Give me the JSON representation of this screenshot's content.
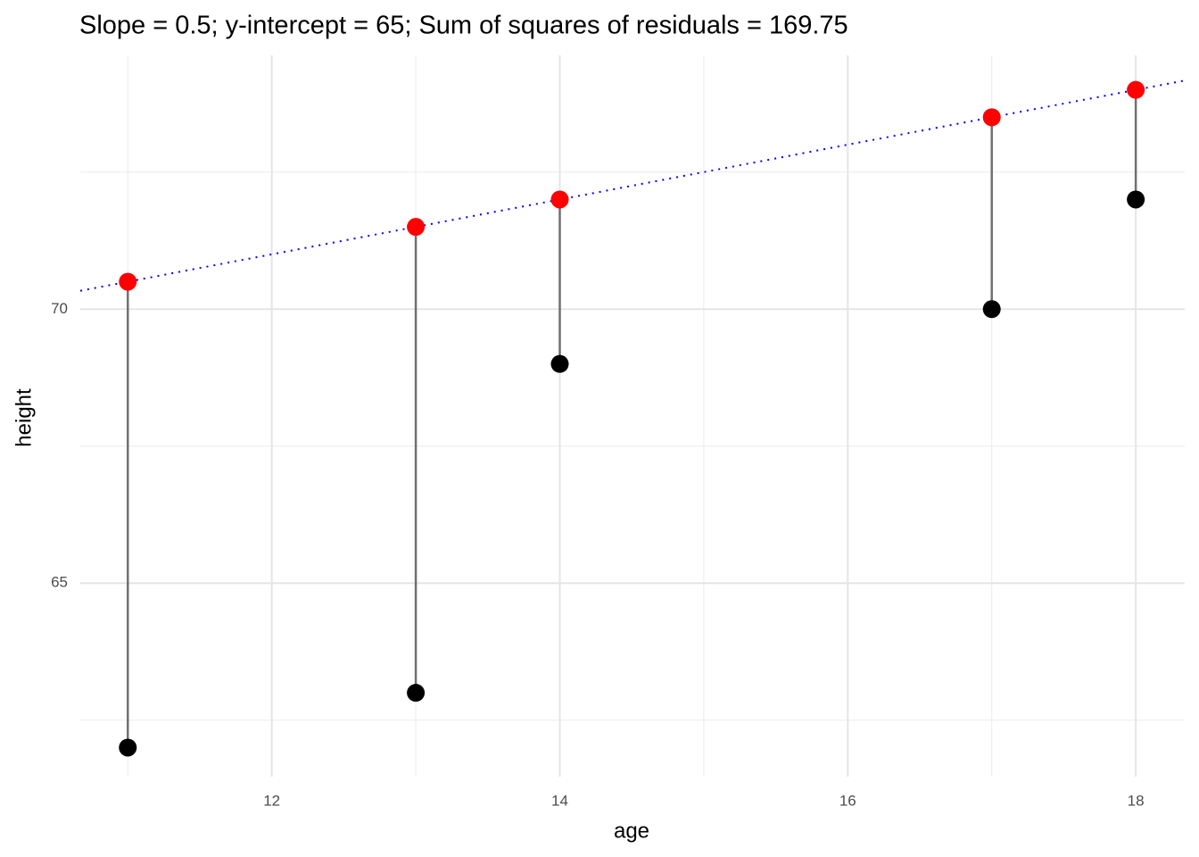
{
  "chart_data": {
    "type": "scatter",
    "title": "Slope = 0.5; y-intercept = 65; Sum of squares of residuals = 169.75",
    "x_label": "age",
    "y_label": "height",
    "x": [
      11,
      13,
      14,
      17,
      18
    ],
    "values": [
      62,
      63,
      69,
      70,
      72
    ],
    "fitted": [
      70.5,
      71.5,
      72,
      73.5,
      74
    ],
    "color": "#000000",
    "fitted_color": "#ff0000",
    "residual_color": "#707070",
    "line": {
      "slope": 0.5,
      "intercept": 65,
      "color": "#0000ff"
    },
    "xlim": [
      10.67,
      18.34
    ],
    "xticks": [
      12,
      14,
      16,
      18
    ],
    "xminor": [
      11,
      13,
      15,
      17
    ],
    "ylim": [
      61.47,
      74.63
    ],
    "yticks": [
      65,
      70
    ],
    "yminor": [
      62.5,
      67.5,
      72.5
    ],
    "grid": true
  }
}
